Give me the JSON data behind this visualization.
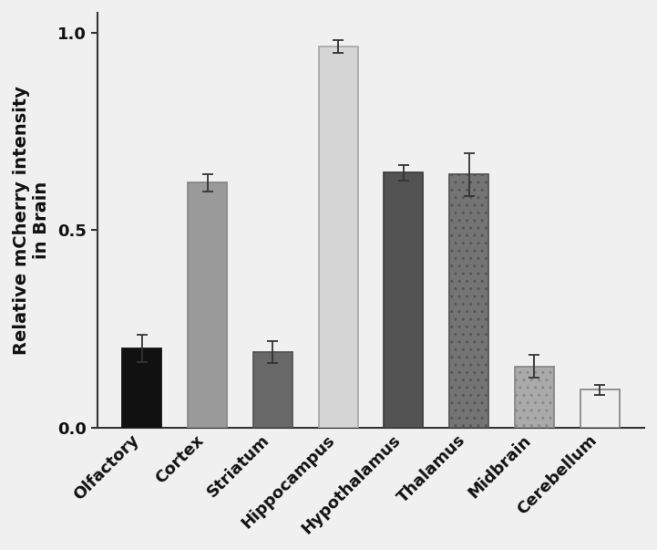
{
  "categories": [
    "Olfactory",
    "Cortex",
    "Striatum",
    "Hippocampus",
    "Hypothalamus",
    "Thalamus",
    "Midbrain",
    "Cerebellum"
  ],
  "values": [
    0.2,
    0.62,
    0.19,
    0.965,
    0.645,
    0.64,
    0.155,
    0.095
  ],
  "errors": [
    0.035,
    0.022,
    0.028,
    0.016,
    0.02,
    0.055,
    0.028,
    0.013
  ],
  "face_colors": [
    "#111111",
    "#9a9a9a",
    "#686868",
    "#d5d5d5",
    "#525252",
    "#747474",
    "#aaaaaa",
    "#f0f0f0"
  ],
  "edge_colors": [
    "#111111",
    "#888888",
    "#555555",
    "#aaaaaa",
    "#404040",
    "#555555",
    "#888888",
    "#888888"
  ],
  "hatches": [
    null,
    null,
    null,
    null,
    null,
    "..",
    "..",
    null
  ],
  "ylabel_line1": "Relative mCherry intensity",
  "ylabel_line2": "in Brain",
  "ylim": [
    0.0,
    1.05
  ],
  "yticks": [
    0.0,
    0.5,
    1.0
  ],
  "background_color": "#f0f0f0",
  "axes_facecolor": "#f0f0f0",
  "bar_width": 0.6,
  "label_fontsize": 14,
  "tick_fontsize": 13
}
